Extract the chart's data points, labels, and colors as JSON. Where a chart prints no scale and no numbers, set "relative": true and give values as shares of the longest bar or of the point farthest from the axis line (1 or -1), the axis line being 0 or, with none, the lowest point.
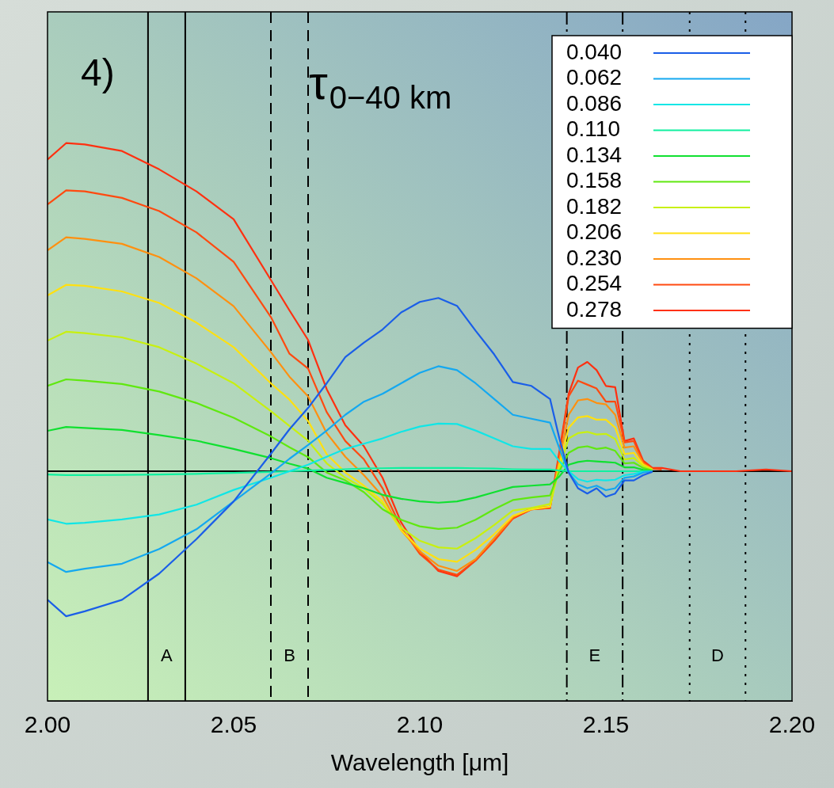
{
  "chart_data": {
    "type": "line",
    "relative": true,
    "title": "τ$_{0−40 km}$",
    "xlabel": "Wavelength [μm]",
    "x": [
      2.0,
      2.005,
      2.01,
      2.02,
      2.03,
      2.04,
      2.05,
      2.06,
      2.065,
      2.07,
      2.075,
      2.08,
      2.085,
      2.09,
      2.095,
      2.1,
      2.105,
      2.11,
      2.115,
      2.12,
      2.125,
      2.13,
      2.135,
      2.1375,
      2.14,
      2.1425,
      2.145,
      2.1475,
      2.15,
      2.1525,
      2.155,
      2.1575,
      2.16,
      2.1625,
      2.165,
      2.17,
      2.185,
      2.193,
      2.2
    ],
    "xlim": [
      2.0,
      2.2
    ],
    "xticks": [
      {
        "value": 2.0,
        "label": "2.00"
      },
      {
        "value": 2.05,
        "label": "2.05"
      },
      {
        "value": 2.1,
        "label": "2.10"
      },
      {
        "value": 2.15,
        "label": "2.15"
      },
      {
        "value": 2.2,
        "label": "2.20"
      }
    ],
    "tick_labels": "x",
    "grid": false,
    "legend": "top right",
    "marker": "none",
    "line_style": "solid",
    "series": [
      {
        "name": "0.040",
        "color": "#1a5ee8",
        "values": [
          -0.392,
          -0.442,
          -0.427,
          -0.392,
          -0.312,
          -0.207,
          -0.092,
          0.053,
          0.128,
          0.193,
          0.268,
          0.348,
          0.392,
          0.432,
          0.484,
          0.516,
          0.528,
          0.504,
          0.428,
          0.356,
          0.272,
          0.26,
          0.22,
          0.1,
          -0.004,
          -0.052,
          -0.068,
          -0.052,
          -0.078,
          -0.068,
          -0.028,
          -0.028,
          -0.012,
          -0.002,
          null,
          null,
          null,
          null,
          null
        ]
      },
      {
        "name": "0.062",
        "color": "#14a8f0",
        "values": [
          -0.277,
          -0.307,
          -0.297,
          -0.282,
          -0.237,
          -0.177,
          -0.092,
          -0.007,
          0.038,
          0.08,
          0.124,
          0.172,
          0.212,
          0.236,
          0.268,
          0.3,
          0.32,
          0.308,
          0.268,
          0.22,
          0.172,
          0.16,
          0.148,
          0.07,
          -0.004,
          -0.04,
          -0.052,
          -0.044,
          -0.058,
          -0.052,
          -0.02,
          -0.016,
          -0.004,
          0,
          null,
          null,
          null,
          null,
          null
        ]
      },
      {
        "name": "0.086",
        "color": "#10e6e6",
        "values": [
          -0.147,
          -0.16,
          -0.157,
          -0.147,
          -0.132,
          -0.102,
          -0.057,
          -0.02,
          0,
          0.02,
          0.044,
          0.068,
          0.084,
          0.1,
          0.12,
          0.136,
          0.145,
          0.144,
          0.124,
          0.1,
          0.076,
          0.068,
          0.068,
          0.03,
          0,
          -0.024,
          -0.032,
          -0.026,
          -0.028,
          -0.026,
          -0.012,
          -0.008,
          -0.002,
          0,
          null,
          null,
          null,
          null,
          null
        ]
      },
      {
        "name": "0.110",
        "color": "#10f0a0",
        "values": [
          -0.01,
          -0.012,
          -0.012,
          -0.011,
          -0.01,
          -0.008,
          -0.005,
          -0.002,
          0,
          0.002,
          0.004,
          0.006,
          0.008,
          0.009,
          0.01,
          0.01,
          0.01,
          0.01,
          0.009,
          0.008,
          0.006,
          0.005,
          0.005,
          0.002,
          0,
          0,
          0,
          0,
          0,
          0,
          0,
          0,
          0,
          0,
          null,
          null,
          null,
          null,
          null
        ]
      },
      {
        "name": "0.134",
        "color": "#10e030",
        "values": [
          0.123,
          0.135,
          0.132,
          0.126,
          0.11,
          0.093,
          0.068,
          0.04,
          0.023,
          0.008,
          -0.02,
          -0.036,
          -0.052,
          -0.072,
          -0.084,
          -0.092,
          -0.096,
          -0.092,
          -0.08,
          -0.064,
          -0.048,
          -0.044,
          -0.04,
          -0.016,
          0.02,
          0.028,
          0.032,
          0.03,
          0.028,
          0.026,
          0.012,
          0.012,
          0.004,
          0,
          null,
          null,
          null,
          null,
          null
        ]
      },
      {
        "name": "0.158",
        "color": "#60e810",
        "values": [
          0.26,
          0.28,
          0.276,
          0.266,
          0.243,
          0.208,
          0.163,
          0.106,
          0.073,
          0.043,
          -0.004,
          -0.028,
          -0.064,
          -0.116,
          -0.148,
          -0.168,
          -0.176,
          -0.172,
          -0.148,
          -0.116,
          -0.088,
          -0.08,
          -0.074,
          0,
          0.056,
          0.072,
          0.076,
          0.068,
          0.072,
          0.062,
          0.024,
          0.026,
          0.01,
          0.002,
          null,
          null,
          null,
          null,
          null
        ]
      },
      {
        "name": "0.182",
        "color": "#c8f010",
        "values": [
          0.398,
          0.425,
          0.421,
          0.408,
          0.378,
          0.328,
          0.268,
          0.183,
          0.138,
          0.093,
          0.024,
          -0.02,
          -0.052,
          -0.1,
          -0.172,
          -0.212,
          -0.232,
          -0.236,
          -0.204,
          -0.164,
          -0.12,
          -0.112,
          -0.1,
          0.01,
          0.1,
          0.116,
          0.12,
          0.112,
          0.114,
          0.098,
          0.036,
          0.04,
          0.016,
          0.004,
          null,
          null,
          null,
          null,
          null
        ]
      },
      {
        "name": "0.206",
        "color": "#ffe010",
        "values": [
          0.536,
          0.568,
          0.565,
          0.548,
          0.513,
          0.453,
          0.378,
          0.268,
          0.218,
          0.153,
          0.052,
          -0.004,
          -0.044,
          -0.092,
          -0.18,
          -0.236,
          -0.268,
          -0.276,
          -0.24,
          -0.192,
          -0.136,
          -0.116,
          -0.108,
          0.02,
          0.132,
          0.164,
          0.168,
          0.157,
          0.157,
          0.133,
          0.052,
          0.056,
          0.02,
          0.005,
          null,
          null,
          null,
          null,
          null
        ]
      },
      {
        "name": "0.230",
        "color": "#ff9010",
        "values": [
          0.673,
          0.713,
          0.708,
          0.693,
          0.653,
          0.588,
          0.503,
          0.363,
          0.288,
          0.228,
          0.116,
          0.044,
          -0.012,
          -0.076,
          -0.18,
          -0.244,
          -0.288,
          -0.304,
          -0.268,
          -0.204,
          -0.14,
          -0.112,
          -0.108,
          0.035,
          0.172,
          0.216,
          0.22,
          0.208,
          0.204,
          0.172,
          0.072,
          0.076,
          0.024,
          0.006,
          null,
          null,
          null,
          null,
          null
        ]
      },
      {
        "name": "0.254",
        "color": "#ff4a10",
        "values": [
          0.813,
          0.856,
          0.853,
          0.833,
          0.793,
          0.728,
          0.638,
          0.47,
          0.358,
          0.313,
          0.18,
          0.092,
          0.036,
          -0.052,
          -0.172,
          -0.252,
          -0.3,
          -0.316,
          -0.272,
          -0.212,
          -0.144,
          -0.116,
          -0.112,
          0.05,
          0.228,
          0.276,
          0.264,
          0.252,
          0.212,
          0.212,
          0.088,
          0.092,
          0.028,
          0.008,
          0.005,
          null,
          null,
          null,
          null
        ]
      },
      {
        "name": "0.278",
        "color": "#ff3010",
        "values": [
          0.95,
          1,
          0.996,
          0.976,
          0.92,
          0.853,
          0.768,
          0.583,
          0.49,
          0.4,
          0.25,
          0.14,
          0.076,
          -0.02,
          -0.156,
          -0.244,
          -0.304,
          -0.32,
          -0.272,
          -0.212,
          -0.144,
          -0.116,
          -0.112,
          0.06,
          0.236,
          0.316,
          0.333,
          0.308,
          0.26,
          0.256,
          0.092,
          0.1,
          0.032,
          0.01,
          0.01,
          0,
          0,
          0.005,
          0
        ]
      }
    ],
    "ref_lines": [
      {
        "axis": "y",
        "value": 0,
        "color": "#000000",
        "line_style": "solid"
      },
      {
        "axis": "x",
        "value": 2.027,
        "color": "#000000",
        "line_style": "solid"
      },
      {
        "axis": "x",
        "value": 2.037,
        "color": "#000000",
        "line_style": "solid"
      },
      {
        "axis": "x",
        "value": 2.06,
        "color": "#000000",
        "line_style": "dashed"
      },
      {
        "axis": "x",
        "value": 2.07,
        "color": "#000000",
        "line_style": "dashed"
      },
      {
        "axis": "x",
        "value": 2.1395,
        "color": "#000000",
        "line_style": "dashdot"
      },
      {
        "axis": "x",
        "value": 2.1545,
        "color": "#000000",
        "line_style": "dashdot"
      },
      {
        "axis": "x",
        "value": 2.1725,
        "color": "#000000",
        "line_style": "dotted"
      },
      {
        "axis": "x",
        "value": 2.1875,
        "color": "#000000",
        "line_style": "dotted"
      }
    ],
    "annotations": [
      "4)",
      "A",
      "B",
      "E",
      "D"
    ]
  }
}
